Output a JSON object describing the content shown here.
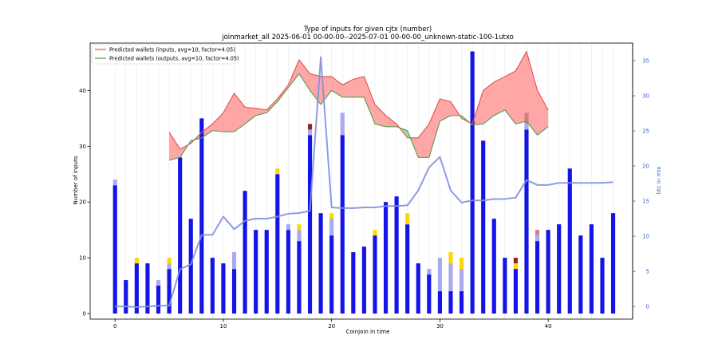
{
  "chart_data": {
    "type": "bar",
    "title": "Type of inputs for given cjtx (number)",
    "subtitle": "joinmarket_all 2025-06-01 00-00-00--2025-07-01 00-00-00_unknown-static-100-1utxo",
    "xlabel": "Coinjoin in time",
    "ylabel": "Number of inputs",
    "ylabel_right": "btc in mix",
    "xlim": [
      -2.3,
      47.8
    ],
    "ylim": [
      -1,
      48.5
    ],
    "ylim_right": [
      -1.8,
      37.5
    ],
    "xticks": [
      0,
      10,
      20,
      30,
      40
    ],
    "yticks": [
      0,
      10,
      20,
      30,
      40
    ],
    "yticks_right": [
      0,
      5,
      10,
      15,
      20,
      25,
      30,
      35
    ],
    "grid": "vertical",
    "legend_position": "top-left",
    "colors": {
      "fresh": "#1414e6",
      "remixed": "#aaaaee",
      "friend": "#ffd700",
      "other": "#d08080",
      "dark": "#8b2a1a",
      "inputs_line": "#e05050",
      "inputs_fill": "#ff9090",
      "outputs_line": "#50a050",
      "outputs_fill": "#90cc90",
      "btc_line": "#8090e0",
      "axis_right": "#3a5fd9"
    },
    "bars": [
      {
        "x": 0,
        "fresh": 23,
        "remixed": 1,
        "friend": 0,
        "other": 0,
        "dark": 0
      },
      {
        "x": 1,
        "fresh": 6,
        "remixed": 0,
        "friend": 0,
        "other": 0,
        "dark": 0
      },
      {
        "x": 2,
        "fresh": 9,
        "remixed": 0,
        "friend": 1,
        "other": 0,
        "dark": 0
      },
      {
        "x": 3,
        "fresh": 9,
        "remixed": 0,
        "friend": 0,
        "other": 0,
        "dark": 0
      },
      {
        "x": 4,
        "fresh": 5,
        "remixed": 1,
        "friend": 0,
        "other": 0,
        "dark": 0
      },
      {
        "x": 5,
        "fresh": 8,
        "remixed": 1,
        "friend": 1,
        "other": 0,
        "dark": 0
      },
      {
        "x": 6,
        "fresh": 28,
        "remixed": 0,
        "friend": 0,
        "other": 0,
        "dark": 0
      },
      {
        "x": 7,
        "fresh": 17,
        "remixed": 0,
        "friend": 0,
        "other": 0,
        "dark": 0
      },
      {
        "x": 8,
        "fresh": 35,
        "remixed": 0,
        "friend": 0,
        "other": 0,
        "dark": 0
      },
      {
        "x": 9,
        "fresh": 10,
        "remixed": 0,
        "friend": 0,
        "other": 0,
        "dark": 0
      },
      {
        "x": 10,
        "fresh": 9,
        "remixed": 0,
        "friend": 0,
        "other": 0,
        "dark": 0
      },
      {
        "x": 11,
        "fresh": 8,
        "remixed": 3,
        "friend": 0,
        "other": 0,
        "dark": 0
      },
      {
        "x": 12,
        "fresh": 22,
        "remixed": 0,
        "friend": 0,
        "other": 0,
        "dark": 0
      },
      {
        "x": 13,
        "fresh": 15,
        "remixed": 0,
        "friend": 0,
        "other": 0,
        "dark": 0
      },
      {
        "x": 14,
        "fresh": 15,
        "remixed": 0,
        "friend": 0,
        "other": 0,
        "dark": 0
      },
      {
        "x": 15,
        "fresh": 25,
        "remixed": 0,
        "friend": 1,
        "other": 0,
        "dark": 0
      },
      {
        "x": 16,
        "fresh": 15,
        "remixed": 1,
        "friend": 0,
        "other": 0,
        "dark": 0
      },
      {
        "x": 17,
        "fresh": 13,
        "remixed": 2,
        "friend": 1,
        "other": 0,
        "dark": 0
      },
      {
        "x": 18,
        "fresh": 32,
        "remixed": 1,
        "friend": 0,
        "other": 0,
        "dark": 1
      },
      {
        "x": 19,
        "fresh": 18,
        "remixed": 0,
        "friend": 0,
        "other": 0,
        "dark": 0
      },
      {
        "x": 20,
        "fresh": 14,
        "remixed": 3,
        "friend": 1,
        "other": 0,
        "dark": 0
      },
      {
        "x": 21,
        "fresh": 32,
        "remixed": 4,
        "friend": 0,
        "other": 0,
        "dark": 0
      },
      {
        "x": 22,
        "fresh": 11,
        "remixed": 0,
        "friend": 0,
        "other": 0,
        "dark": 0
      },
      {
        "x": 23,
        "fresh": 12,
        "remixed": 0,
        "friend": 0,
        "other": 0,
        "dark": 0
      },
      {
        "x": 24,
        "fresh": 14,
        "remixed": 0,
        "friend": 1,
        "other": 0,
        "dark": 0
      },
      {
        "x": 25,
        "fresh": 20,
        "remixed": 0,
        "friend": 0,
        "other": 0,
        "dark": 0
      },
      {
        "x": 26,
        "fresh": 21,
        "remixed": 0,
        "friend": 0,
        "other": 0,
        "dark": 0
      },
      {
        "x": 27,
        "fresh": 16,
        "remixed": 0,
        "friend": 2,
        "other": 0,
        "dark": 0
      },
      {
        "x": 28,
        "fresh": 9,
        "remixed": 0,
        "friend": 0,
        "other": 0,
        "dark": 0
      },
      {
        "x": 29,
        "fresh": 7,
        "remixed": 1,
        "friend": 0,
        "other": 0,
        "dark": 0
      },
      {
        "x": 30,
        "fresh": 4,
        "remixed": 6,
        "friend": 0,
        "other": 0,
        "dark": 0
      },
      {
        "x": 31,
        "fresh": 4,
        "remixed": 5,
        "friend": 2,
        "other": 0,
        "dark": 0
      },
      {
        "x": 32,
        "fresh": 4,
        "remixed": 4,
        "friend": 2,
        "other": 0,
        "dark": 0
      },
      {
        "x": 33,
        "fresh": 47,
        "remixed": 0,
        "friend": 0,
        "other": 0,
        "dark": 0
      },
      {
        "x": 34,
        "fresh": 31,
        "remixed": 0,
        "friend": 0,
        "other": 0,
        "dark": 0
      },
      {
        "x": 35,
        "fresh": 17,
        "remixed": 0,
        "friend": 0,
        "other": 0,
        "dark": 0
      },
      {
        "x": 36,
        "fresh": 10,
        "remixed": 0,
        "friend": 0,
        "other": 0,
        "dark": 0
      },
      {
        "x": 37,
        "fresh": 8,
        "remixed": 0,
        "friend": 1,
        "other": 0,
        "dark": 1
      },
      {
        "x": 38,
        "fresh": 33,
        "remixed": 1,
        "friend": 0,
        "other": 2,
        "dark": 0
      },
      {
        "x": 39,
        "fresh": 13,
        "remixed": 1,
        "friend": 0,
        "other": 1,
        "dark": 0
      },
      {
        "x": 40,
        "fresh": 15,
        "remixed": 0,
        "friend": 0,
        "other": 0,
        "dark": 0
      },
      {
        "x": 41,
        "fresh": 16,
        "remixed": 0,
        "friend": 0,
        "other": 0,
        "dark": 0
      },
      {
        "x": 42,
        "fresh": 26,
        "remixed": 0,
        "friend": 0,
        "other": 0,
        "dark": 0
      },
      {
        "x": 43,
        "fresh": 14,
        "remixed": 0,
        "friend": 0,
        "other": 0,
        "dark": 0
      },
      {
        "x": 44,
        "fresh": 16,
        "remixed": 0,
        "friend": 0,
        "other": 0,
        "dark": 0
      },
      {
        "x": 45,
        "fresh": 10,
        "remixed": 0,
        "friend": 0,
        "other": 0,
        "dark": 0
      },
      {
        "x": 46,
        "fresh": 18,
        "remixed": 0,
        "friend": 0,
        "other": 0,
        "dark": 0
      }
    ],
    "series": [
      {
        "name": "Predicted wallets (inputs, avg=10, factor=4.05)",
        "x": [
          5,
          6,
          7,
          8,
          9,
          10,
          11,
          12,
          13,
          14,
          15,
          16,
          17,
          18,
          19,
          20,
          21,
          22,
          23,
          24,
          25,
          26,
          27,
          28,
          29,
          30,
          31,
          32,
          33,
          34,
          35,
          36,
          37,
          38,
          39,
          40
        ],
        "values": [
          32.5,
          29.5,
          30.5,
          32.5,
          34,
          36,
          39.5,
          37,
          36.8,
          36.5,
          38.5,
          41,
          45.5,
          43,
          42.5,
          42.5,
          41,
          42,
          42.5,
          37.5,
          35.5,
          34,
          31.5,
          31.5,
          34,
          38.5,
          38,
          35,
          34,
          40,
          41.5,
          42.5,
          43.5,
          47,
          40,
          36.5
        ]
      },
      {
        "name": "Predicted wallets (outputs, avg=10, factor=4.05)",
        "x": [
          5,
          6,
          7,
          8,
          9,
          10,
          11,
          12,
          13,
          14,
          15,
          16,
          17,
          18,
          19,
          20,
          21,
          22,
          23,
          24,
          25,
          26,
          27,
          28,
          29,
          30,
          31,
          32,
          33,
          34,
          35,
          36,
          37,
          38,
          39,
          40
        ],
        "values": [
          27.5,
          28,
          31,
          31.5,
          32.8,
          32.6,
          32.6,
          34,
          35.5,
          36,
          38,
          40.5,
          43,
          40,
          37.5,
          40,
          38.8,
          38.8,
          38.8,
          34,
          33.5,
          33.5,
          32.8,
          28,
          28,
          34.5,
          35.5,
          35.5,
          33.8,
          34,
          35.5,
          36.5,
          34,
          34.5,
          32,
          33.5
        ]
      },
      {
        "name": "btc in mix",
        "axis": "right",
        "x": [
          0,
          1,
          2,
          3,
          4,
          5,
          6,
          7,
          8,
          9,
          10,
          11,
          12,
          13,
          14,
          15,
          16,
          17,
          18,
          19,
          20,
          21,
          22,
          23,
          24,
          25,
          26,
          27,
          28,
          29,
          30,
          31,
          32,
          33,
          34,
          35,
          36,
          37,
          38,
          39,
          40,
          41,
          42,
          43,
          44,
          45,
          46
        ],
        "values": [
          0,
          0,
          -0.1,
          0,
          0.1,
          0.1,
          5.3,
          6,
          10.2,
          10.2,
          12.8,
          11,
          12.2,
          12.5,
          12.5,
          12.8,
          13.2,
          13.3,
          13.6,
          35.5,
          14.1,
          14,
          14,
          14.1,
          14.1,
          14.3,
          14.3,
          14.4,
          16.5,
          19.8,
          21.3,
          16.5,
          14.8,
          15.1,
          15.1,
          15.3,
          15.3,
          15.5,
          18,
          17.3,
          17.3,
          17.6,
          17.6,
          17.6,
          17.6,
          17.6,
          17.7
        ]
      }
    ],
    "legend": [
      "Predicted wallets (inputs, avg=10, factor=4.05)",
      "Predicted wallets (outputs, avg=10, factor=4.05)"
    ]
  }
}
